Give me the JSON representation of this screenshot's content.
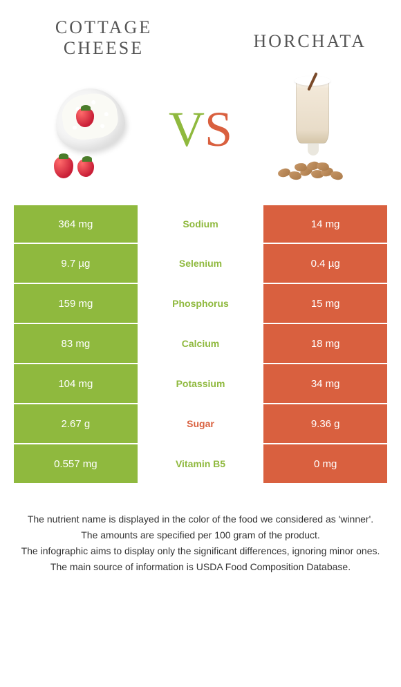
{
  "colors": {
    "green": "#8fb93e",
    "orange": "#d9603f",
    "white": "#ffffff"
  },
  "food_left": {
    "title": "COTTAGE CHEESE"
  },
  "food_right": {
    "title": "HORCHATA"
  },
  "vs": {
    "v": "V",
    "s": "S"
  },
  "rows": [
    {
      "left": "364 mg",
      "label": "Sodium",
      "right": "14 mg",
      "winner": "left"
    },
    {
      "left": "9.7 µg",
      "label": "Selenium",
      "right": "0.4 µg",
      "winner": "left"
    },
    {
      "left": "159 mg",
      "label": "Phosphorus",
      "right": "15 mg",
      "winner": "left"
    },
    {
      "left": "83 mg",
      "label": "Calcium",
      "right": "18 mg",
      "winner": "left"
    },
    {
      "left": "104 mg",
      "label": "Potassium",
      "right": "34 mg",
      "winner": "left"
    },
    {
      "left": "2.67 g",
      "label": "Sugar",
      "right": "9.36 g",
      "winner": "right"
    },
    {
      "left": "0.557 mg",
      "label": "Vitamin B5",
      "right": "0 mg",
      "winner": "left"
    }
  ],
  "footer": {
    "line1": "The nutrient name is displayed in the color of the food we considered as 'winner'.",
    "line2": "The amounts are specified per 100 gram of the product.",
    "line3": "The infographic aims to display only the significant differences, ignoring minor ones.",
    "line4": "The main source of information is USDA Food Composition Database."
  }
}
